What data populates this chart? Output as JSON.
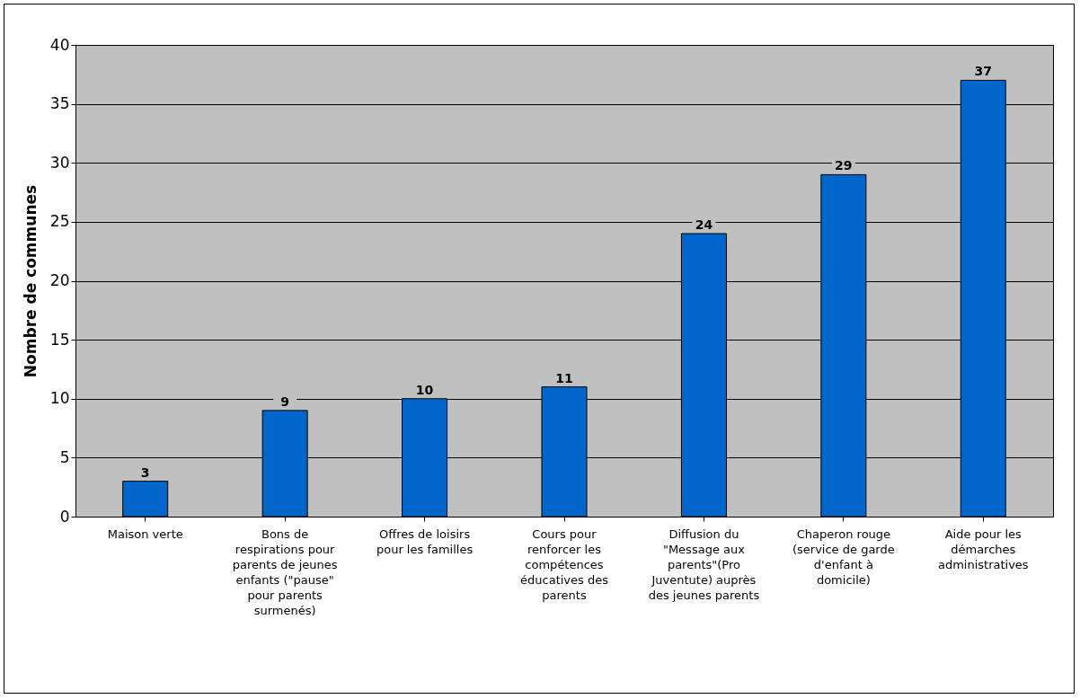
{
  "chart_data": {
    "type": "bar",
    "ylabel": "Nombre de communes",
    "categories": [
      "Maison verte",
      "Bons de respirations pour parents de jeunes enfants (\"pause\" pour parents surmenés)",
      "Offres de loisirs pour les familles",
      "Cours pour renforcer les compétences éducatives des parents",
      "Diffusion du \"Message aux parents\"(Pro Juventute) auprès des jeunes parents",
      "Chaperon rouge (service de garde d'enfant à domicile)",
      "Aide pour les démarches administratives"
    ],
    "values": [
      3,
      9,
      10,
      11,
      24,
      29,
      37
    ],
    "color": "#0066cc",
    "ylim": [
      0,
      40
    ],
    "yticks": [
      0,
      5,
      10,
      15,
      20,
      25,
      30,
      35,
      40
    ],
    "grid": "y",
    "data_labels": true
  }
}
